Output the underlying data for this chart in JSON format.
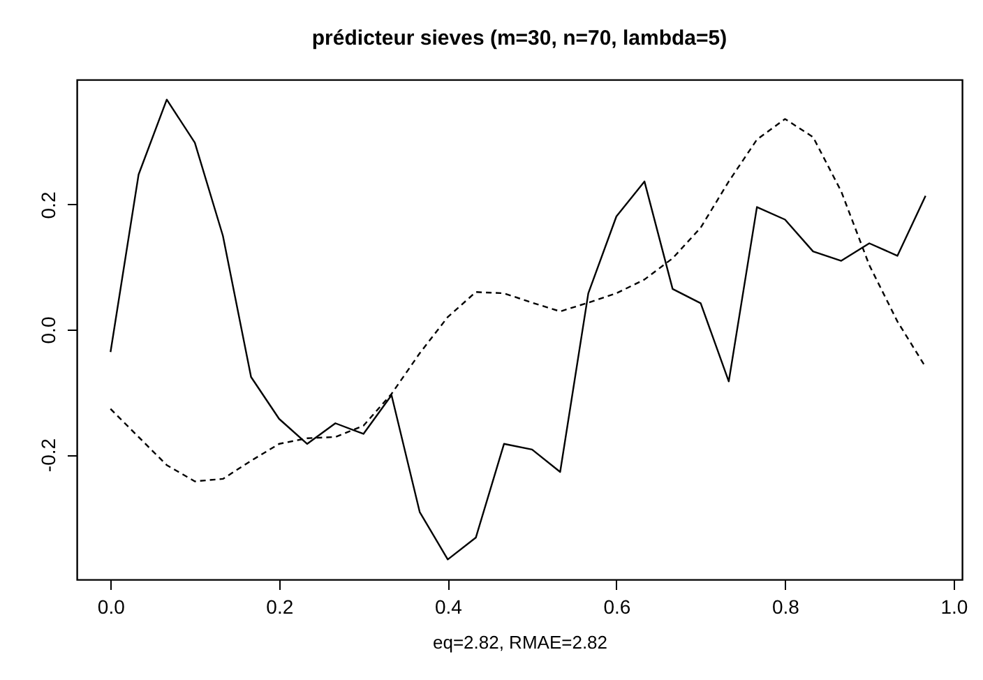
{
  "chart_data": {
    "type": "line",
    "title": "prédicteur sieves (m=30, n=70, lambda=5)",
    "xlabel": "eq=2.82,   RMAE=2.82",
    "x": [
      0,
      0.0333,
      0.0667,
      0.1,
      0.1333,
      0.1667,
      0.2,
      0.2333,
      0.2667,
      0.3,
      0.3333,
      0.3667,
      0.4,
      0.4333,
      0.4667,
      0.5,
      0.5333,
      0.5667,
      0.6,
      0.6333,
      0.6667,
      0.7,
      0.7333,
      0.7667,
      0.8,
      0.8333,
      0.8667,
      0.9,
      0.9333,
      0.9667
    ],
    "series": [
      {
        "color": "#000000",
        "line_style": "solid",
        "values": [
          -0.036,
          0.248,
          0.368,
          0.299,
          0.15,
          -0.076,
          -0.143,
          -0.183,
          -0.15,
          -0.167,
          -0.105,
          -0.292,
          -0.368,
          -0.333,
          -0.183,
          -0.192,
          -0.228,
          0.058,
          0.181,
          0.237,
          0.065,
          0.042,
          -0.083,
          0.196,
          0.176,
          0.125,
          0.11,
          0.138,
          0.118,
          0.214
        ]
      },
      {
        "color": "#000000",
        "line_style": "dashed",
        "values": [
          -0.127,
          -0.172,
          -0.217,
          -0.243,
          -0.239,
          -0.21,
          -0.183,
          -0.174,
          -0.172,
          -0.154,
          -0.103,
          -0.038,
          0.02,
          0.06,
          0.058,
          0.043,
          0.029,
          0.043,
          0.058,
          0.08,
          0.114,
          0.163,
          0.237,
          0.304,
          0.337,
          0.308,
          0.221,
          0.103,
          0.013,
          -0.06
        ]
      }
    ],
    "xlim": [
      -0.04,
      1.01
    ],
    "ylim": [
      -0.4,
      0.4
    ],
    "xticks": [
      {
        "value": 0,
        "label": "0.0"
      },
      {
        "value": 0.2,
        "label": "0.2"
      },
      {
        "value": 0.4,
        "label": "0.4"
      },
      {
        "value": 0.6,
        "label": "0.6"
      },
      {
        "value": 0.8,
        "label": "0.8"
      },
      {
        "value": 1,
        "label": "1.0"
      }
    ],
    "yticks": [
      {
        "value": -0.2,
        "label": "-0.2"
      },
      {
        "value": 0,
        "label": "0.0"
      },
      {
        "value": 0.2,
        "label": "0.2"
      }
    ],
    "grid": false
  }
}
